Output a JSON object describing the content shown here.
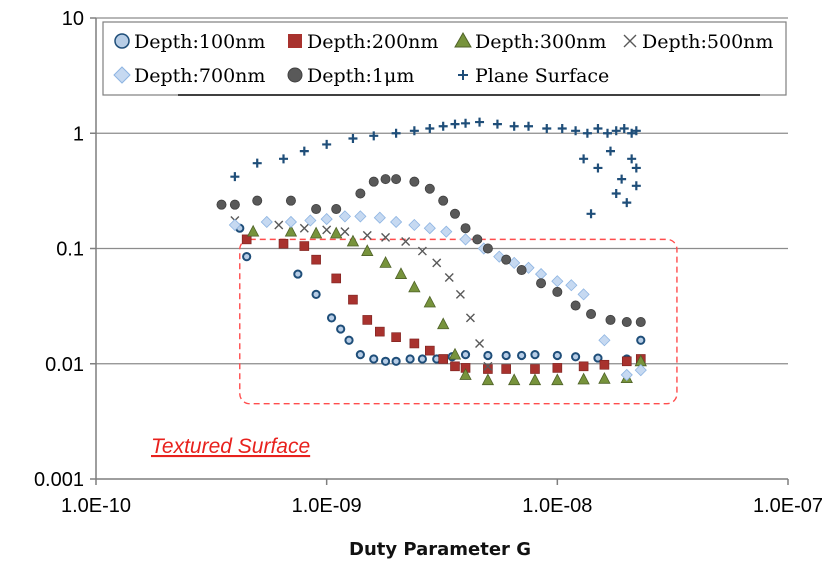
{
  "chart_data": {
    "type": "scatter",
    "xscale": "log",
    "yscale": "log",
    "xlim": [
      1e-10,
      1e-07
    ],
    "ylim": [
      0.001,
      10
    ],
    "grid": "horizontal",
    "legend_placement": "top",
    "x_tick_labels": [
      "1.0E-10",
      "1.0E-09",
      "1.0E-08",
      "1.0E-07"
    ],
    "y_tick_labels": [
      "0.001",
      "0.01",
      "0.1",
      "1",
      "10"
    ],
    "xlabel": "Duty Parameter  G",
    "ylabel": "",
    "title": "",
    "annotation": {
      "text": "Textured Surface",
      "color": "#e8211d",
      "region": {
        "x": [
          4.2e-10,
          3.3e-08
        ],
        "y": [
          0.0045,
          0.12
        ]
      }
    },
    "series": [
      {
        "name": "Depth:100nm",
        "marker": "circle-open",
        "color": "#1f4e79",
        "fill": "#b7cde6",
        "x": [
          4.2e-10,
          4.5e-10,
          7.5e-10,
          9e-10,
          1.05e-09,
          1.15e-09,
          1.25e-09,
          1.4e-09,
          1.6e-09,
          1.8e-09,
          2e-09,
          2.3e-09,
          2.6e-09,
          3e-09,
          3.5e-09,
          4e-09,
          5e-09,
          6e-09,
          7e-09,
          8e-09,
          1e-08,
          1.2e-08,
          1.5e-08,
          2e-08,
          2.3e-08
        ],
        "y": [
          0.15,
          0.085,
          0.06,
          0.04,
          0.025,
          0.02,
          0.016,
          0.012,
          0.011,
          0.0105,
          0.0105,
          0.011,
          0.011,
          0.011,
          0.0115,
          0.012,
          0.0118,
          0.0118,
          0.0118,
          0.012,
          0.0118,
          0.0115,
          0.0112,
          0.011,
          0.016
        ]
      },
      {
        "name": "Depth:200nm",
        "marker": "square",
        "color": "#a8322e",
        "fill": "#a8322e",
        "x": [
          4.5e-10,
          6.5e-10,
          8e-10,
          9e-10,
          1.1e-09,
          1.3e-09,
          1.5e-09,
          1.7e-09,
          2e-09,
          2.4e-09,
          2.8e-09,
          3.2e-09,
          3.6e-09,
          4e-09,
          5e-09,
          6e-09,
          8e-09,
          1e-08,
          1.3e-08,
          1.6e-08,
          2e-08,
          2.3e-08
        ],
        "y": [
          0.12,
          0.11,
          0.105,
          0.08,
          0.055,
          0.036,
          0.024,
          0.019,
          0.017,
          0.015,
          0.013,
          0.011,
          0.0095,
          0.0092,
          0.009,
          0.009,
          0.009,
          0.0092,
          0.0095,
          0.0098,
          0.0105,
          0.011
        ]
      },
      {
        "name": "Depth:300nm",
        "marker": "triangle",
        "color": "#4f6228",
        "fill": "#77933c",
        "x": [
          4.8e-10,
          7e-10,
          9e-10,
          1.1e-09,
          1.3e-09,
          1.5e-09,
          1.8e-09,
          2.1e-09,
          2.4e-09,
          2.8e-09,
          3.2e-09,
          3.6e-09,
          4e-09,
          5e-09,
          6.5e-09,
          8e-09,
          1e-08,
          1.3e-08,
          1.6e-08,
          2e-08,
          2.3e-08
        ],
        "y": [
          0.14,
          0.14,
          0.135,
          0.135,
          0.115,
          0.095,
          0.075,
          0.06,
          0.046,
          0.034,
          0.022,
          0.012,
          0.008,
          0.0072,
          0.0072,
          0.0072,
          0.0072,
          0.0073,
          0.0074,
          0.0075,
          0.0105
        ]
      },
      {
        "name": "Depth:500nm",
        "marker": "x",
        "color": "#595959",
        "fill": "none",
        "x": [
          4e-10,
          6.2e-10,
          8e-10,
          1e-09,
          1.2e-09,
          1.5e-09,
          1.8e-09,
          2.2e-09,
          2.6e-09,
          3e-09,
          3.4e-09,
          3.8e-09,
          4.2e-09,
          4.6e-09,
          5e-09
        ],
        "y": [
          0.175,
          0.16,
          0.15,
          0.145,
          0.14,
          0.13,
          0.125,
          0.115,
          0.095,
          0.075,
          0.056,
          0.04,
          0.025,
          0.015,
          0.0095
        ]
      },
      {
        "name": "Depth:700nm",
        "marker": "diamond",
        "color": "#8db4e2",
        "fill": "#c6d9f1",
        "x": [
          4e-10,
          5.5e-10,
          7e-10,
          8.5e-10,
          1e-09,
          1.2e-09,
          1.4e-09,
          1.7e-09,
          2e-09,
          2.4e-09,
          2.8e-09,
          3.3e-09,
          4e-09,
          4.8e-09,
          5.6e-09,
          6.5e-09,
          7.5e-09,
          8.5e-09,
          1e-08,
          1.15e-08,
          1.3e-08,
          1.6e-08,
          2e-08,
          2.3e-08
        ],
        "y": [
          0.16,
          0.17,
          0.17,
          0.175,
          0.18,
          0.19,
          0.19,
          0.185,
          0.17,
          0.16,
          0.15,
          0.14,
          0.12,
          0.1,
          0.085,
          0.075,
          0.068,
          0.06,
          0.052,
          0.048,
          0.04,
          0.016,
          0.008,
          0.0088
        ]
      },
      {
        "name": "Depth:1μm",
        "marker": "circle",
        "color": "#404040",
        "fill": "#595959",
        "x": [
          3.5e-10,
          4e-10,
          5e-10,
          7e-10,
          9e-10,
          1.1e-09,
          1.4e-09,
          1.6e-09,
          1.8e-09,
          2e-09,
          2.4e-09,
          2.8e-09,
          3.2e-09,
          3.6e-09,
          4e-09,
          4.5e-09,
          5e-09,
          6e-09,
          7e-09,
          8.5e-09,
          1e-08,
          1.2e-08,
          1.4e-08,
          1.7e-08,
          2e-08,
          2.3e-08
        ],
        "y": [
          0.24,
          0.24,
          0.26,
          0.26,
          0.22,
          0.22,
          0.3,
          0.38,
          0.4,
          0.4,
          0.38,
          0.33,
          0.26,
          0.2,
          0.15,
          0.12,
          0.1,
          0.08,
          0.065,
          0.05,
          0.042,
          0.032,
          0.027,
          0.024,
          0.023,
          0.023
        ]
      },
      {
        "name": "Plane Surface",
        "marker": "plus",
        "color": "#1f4e79",
        "fill": "#1f4e79",
        "x": [
          4e-10,
          5e-10,
          6.5e-10,
          8e-10,
          1e-09,
          1.3e-09,
          1.6e-09,
          2e-09,
          2.4e-09,
          2.8e-09,
          3.2e-09,
          3.6e-09,
          4e-09,
          4.6e-09,
          5.5e-09,
          6.5e-09,
          7.5e-09,
          9e-09,
          1.05e-08,
          1.2e-08,
          1.35e-08,
          1.5e-08,
          1.65e-08,
          1.8e-08,
          1.95e-08,
          2.1e-08,
          2.2e-08,
          1.3e-08,
          1.5e-08,
          1.7e-08,
          1.9e-08,
          2.1e-08,
          2.2e-08,
          1.4e-08,
          1.8e-08,
          2e-08,
          2.2e-08
        ],
        "y": [
          0.42,
          0.55,
          0.6,
          0.7,
          0.8,
          0.9,
          0.95,
          1.0,
          1.05,
          1.1,
          1.15,
          1.2,
          1.22,
          1.25,
          1.2,
          1.15,
          1.15,
          1.1,
          1.1,
          1.05,
          1.0,
          1.1,
          1.0,
          1.05,
          1.1,
          1.0,
          1.05,
          0.6,
          0.5,
          0.7,
          0.4,
          0.6,
          0.5,
          0.2,
          0.3,
          0.25,
          0.35
        ]
      }
    ]
  }
}
